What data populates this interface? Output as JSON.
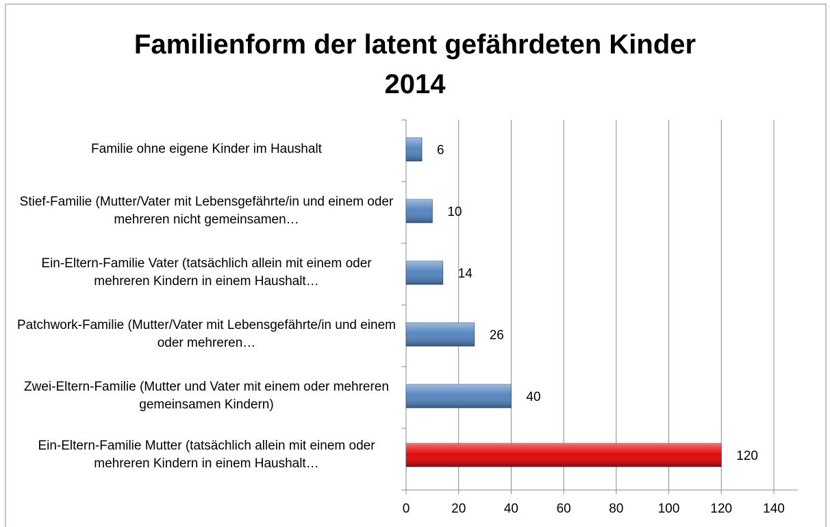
{
  "chart_data": {
    "type": "bar",
    "orientation": "horizontal",
    "title": "Familienform der latent gefährdeten Kinder 2014",
    "categories": [
      "Familie ohne eigene Kinder im Haushalt",
      "Stief-Familie (Mutter/Vater mit Lebensgefährte/in und einem oder mehreren nicht gemeinsamen…",
      "Ein-Eltern-Familie Vater (tatsächlich allein mit einem oder mehreren Kindern in einem Haushalt…",
      "Patchwork-Familie (Mutter/Vater mit Lebensgefährte/in und einem oder mehreren…",
      "Zwei-Eltern-Familie (Mutter und Vater mit einem oder mehreren gemeinsamen Kindern)",
      "Ein-Eltern-Familie Mutter (tatsächlich allein mit einem oder mehreren Kindern in einem Haushalt…"
    ],
    "values": [
      6,
      10,
      14,
      26,
      40,
      120
    ],
    "colors": [
      "#4f81bd",
      "#4f81bd",
      "#4f81bd",
      "#4f81bd",
      "#4f81bd",
      "#e00000"
    ],
    "xlim": [
      0,
      140
    ],
    "xticks": [
      0,
      20,
      40,
      60,
      80,
      100,
      120,
      140
    ],
    "grid": true
  }
}
